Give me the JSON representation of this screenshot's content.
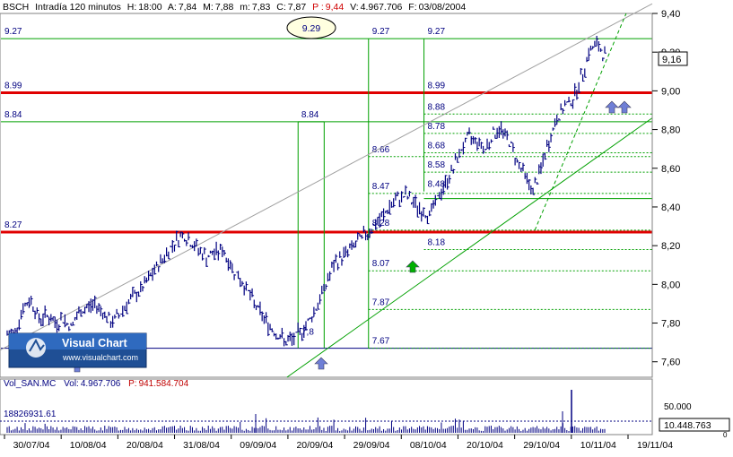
{
  "header": {
    "symbol": "BSCH",
    "timeframe": "Intradía 120 minutos",
    "h_label": "H:",
    "h_value": "18:00",
    "a_label": "A:",
    "a_value": "7,84",
    "m_label": "M:",
    "m_value": "7,88",
    "mi_label": "m:",
    "mi_value": "7,83",
    "c_label": "C:",
    "c_value": "7,87",
    "p_label": "P :",
    "p_value": "9,44",
    "v_label": "V:",
    "v_value": "4.967.706",
    "f_label": "F:",
    "f_value": "03/08/2004"
  },
  "colors": {
    "price_bars": "#000080",
    "support_lines": "#00a000",
    "resistance_thick": "#e00000",
    "bottom_line": "#000080",
    "level_labels": "#000080",
    "arrow_blue": "#6f7fd6",
    "arrow_green": "#00b000",
    "volume": "#000080"
  },
  "logo": {
    "name": "Visual Chart",
    "url": "www.visualchart.com"
  },
  "oval_label": "9.29",
  "current_price": "9,16",
  "volume_panel": {
    "label_name": "Vol_SAN.MC",
    "vol_label": "Vol:",
    "vol_value": "4.967.706",
    "p_label": "P:",
    "p_value": "941.584.704",
    "average_label": "18826931.61",
    "current_value": "10.448.763",
    "y_ticks": [
      "50.000",
      "0"
    ]
  },
  "chart_data": {
    "type": "line",
    "title": "BSCH Intradía 120 minutos",
    "xlabel": "",
    "ylabel": "",
    "ylim": [
      7.52,
      9.4
    ],
    "y_ticks": [
      "9,40",
      "9,20",
      "9,00",
      "8,80",
      "8,60",
      "8,40",
      "8,20",
      "8,00",
      "7,80",
      "7,60"
    ],
    "x_ticks": [
      "30/07/04",
      "10/08/04",
      "20/08/04",
      "31/08/04",
      "09/09/04",
      "20/09/04",
      "29/09/04",
      "08/10/04",
      "20/10/04",
      "29/10/04",
      "10/11/04",
      "19/11/04"
    ],
    "series": [
      {
        "values": [
          7.74,
          7.76,
          7.88,
          7.92,
          7.82,
          7.84,
          7.8,
          7.82,
          7.78,
          7.85,
          7.88,
          7.9,
          7.86,
          7.8,
          7.84,
          7.9,
          7.94,
          7.98,
          8.04,
          8.1,
          8.16,
          8.22,
          8.26,
          8.22,
          8.18,
          8.14,
          8.16,
          8.18,
          8.1,
          8.04,
          7.98,
          7.9,
          7.84,
          7.78,
          7.74,
          7.7,
          7.72,
          7.76,
          7.82,
          7.9,
          8.0,
          8.1,
          8.14,
          8.18,
          8.22,
          8.26,
          8.3,
          8.34,
          8.4,
          8.44,
          8.46,
          8.42,
          8.38,
          8.36,
          8.44,
          8.52,
          8.6,
          8.7,
          8.76,
          8.74,
          8.7,
          8.78,
          8.8,
          8.74,
          8.64,
          8.56,
          8.48,
          8.6,
          8.74,
          8.86,
          8.92,
          8.96,
          9.06,
          9.2,
          9.24,
          9.18
        ]
      }
    ],
    "levels": [
      {
        "value": 9.27,
        "label": "9.27",
        "style": "thin"
      },
      {
        "value": 8.99,
        "label": "8.99",
        "style": "thick"
      },
      {
        "value": 8.84,
        "label": "8.84",
        "style": "thin"
      },
      {
        "value": 8.27,
        "label": "8.27",
        "style": "thick"
      },
      {
        "value": 7.67,
        "label": "",
        "style": "bottom"
      }
    ],
    "fib_left_labels": [
      {
        "value": 9.27,
        "label": "9.27"
      },
      {
        "value": 8.84,
        "label": "8.84"
      },
      {
        "value": 8.66,
        "label": "8.66"
      },
      {
        "value": 8.47,
        "label": "8.47"
      },
      {
        "value": 8.28,
        "label": "8.28"
      },
      {
        "value": 8.07,
        "label": "8.07"
      },
      {
        "value": 7.87,
        "label": "7.87"
      },
      {
        "value": 7.67,
        "label": "7.67"
      }
    ],
    "fib_right_labels": [
      {
        "value": 9.27,
        "label": "9.27"
      },
      {
        "value": 8.99,
        "label": "8.99"
      },
      {
        "value": 8.88,
        "label": "8.88"
      },
      {
        "value": 8.78,
        "label": "8.78"
      },
      {
        "value": 8.68,
        "label": "8.68"
      },
      {
        "value": 8.58,
        "label": "8.58"
      },
      {
        "value": 8.48,
        "label": "8.48"
      },
      {
        "value": 8.18,
        "label": "8.18"
      }
    ],
    "partial_labels": [
      "7,8",
      "9.27"
    ],
    "grid": false,
    "legend": "none"
  }
}
